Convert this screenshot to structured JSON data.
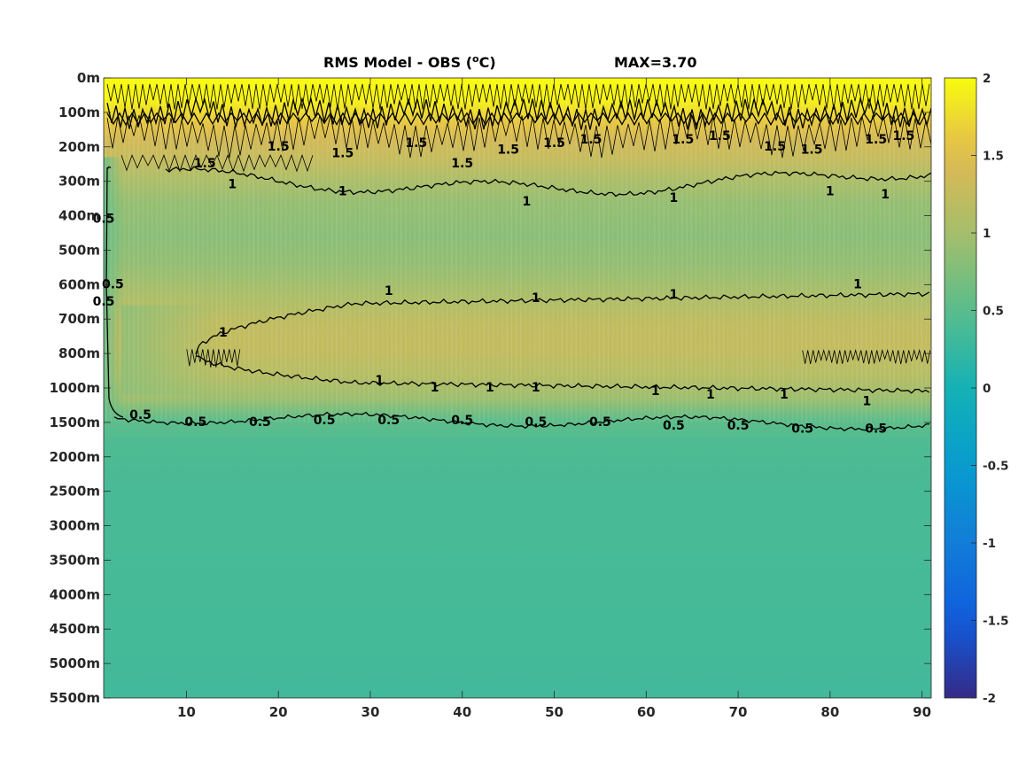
{
  "chart_data": {
    "type": "heatmap",
    "title": "RMS Model - OBS (",
    "title_unit_sup": "o",
    "title_unit_tail": "C)",
    "annotation": "MAX=3.70",
    "x": {
      "ticks": [
        10,
        20,
        30,
        40,
        50,
        60,
        70,
        80,
        90
      ],
      "range": [
        1,
        91
      ]
    },
    "y": {
      "ticks": [
        "0m",
        "100m",
        "200m",
        "300m",
        "400m",
        "500m",
        "600m",
        "700m",
        "800m",
        "1000m",
        "1500m",
        "2000m",
        "2500m",
        "3000m",
        "3500m",
        "4000m",
        "4500m",
        "5000m",
        "5500m"
      ],
      "reversed": true
    },
    "colorbar": {
      "colormap": "parula",
      "range": [
        -2,
        2
      ],
      "ticks": [
        "2",
        "1.5",
        "1",
        "0.5",
        "0",
        "-0.5",
        "-1",
        "-1.5",
        "-2"
      ]
    },
    "contour_levels": [
      0.5,
      1,
      1.5
    ],
    "contour_labels": [
      {
        "text": "1.5",
        "x": 12,
        "y": 2.5
      },
      {
        "text": "1.5",
        "x": 20,
        "y": 2.0
      },
      {
        "text": "1.5",
        "x": 27,
        "y": 2.2
      },
      {
        "text": "1.5",
        "x": 35,
        "y": 1.9
      },
      {
        "text": "1.5",
        "x": 40,
        "y": 2.5
      },
      {
        "text": "1.5",
        "x": 45,
        "y": 2.1
      },
      {
        "text": "1.5",
        "x": 50,
        "y": 1.9
      },
      {
        "text": "1.5",
        "x": 54,
        "y": 1.8
      },
      {
        "text": "1.5",
        "x": 64,
        "y": 1.8
      },
      {
        "text": "1.5",
        "x": 68,
        "y": 1.7
      },
      {
        "text": "1.5",
        "x": 74,
        "y": 2.0
      },
      {
        "text": "1.5",
        "x": 78,
        "y": 2.1
      },
      {
        "text": "1.5",
        "x": 85,
        "y": 1.8
      },
      {
        "text": "1.5",
        "x": 88,
        "y": 1.7
      },
      {
        "text": "1",
        "x": 15,
        "y": 3.1
      },
      {
        "text": "1",
        "x": 27,
        "y": 3.3
      },
      {
        "text": "1",
        "x": 47,
        "y": 3.6
      },
      {
        "text": "1",
        "x": 63,
        "y": 3.5
      },
      {
        "text": "1",
        "x": 80,
        "y": 3.3
      },
      {
        "text": "1",
        "x": 86,
        "y": 3.4
      },
      {
        "text": "1",
        "x": 14,
        "y": 7.4
      },
      {
        "text": "1",
        "x": 32,
        "y": 6.2
      },
      {
        "text": "1",
        "x": 48,
        "y": 6.4
      },
      {
        "text": "1",
        "x": 63,
        "y": 6.3
      },
      {
        "text": "1",
        "x": 83,
        "y": 6.0
      },
      {
        "text": "1",
        "x": 31,
        "y": 8.8
      },
      {
        "text": "1",
        "x": 37,
        "y": 9.0
      },
      {
        "text": "1",
        "x": 43,
        "y": 9.0
      },
      {
        "text": "1",
        "x": 48,
        "y": 9.0
      },
      {
        "text": "1",
        "x": 61,
        "y": 9.1
      },
      {
        "text": "1",
        "x": 67,
        "y": 9.2
      },
      {
        "text": "1",
        "x": 75,
        "y": 9.2
      },
      {
        "text": "1",
        "x": 84,
        "y": 9.4
      },
      {
        "text": "0.5",
        "x": 5,
        "y": 9.8
      },
      {
        "text": "0.5",
        "x": 11,
        "y": 10.0
      },
      {
        "text": "0.5",
        "x": 18,
        "y": 10.0
      },
      {
        "text": "0.5",
        "x": 25,
        "y": 9.95
      },
      {
        "text": "0.5",
        "x": 32,
        "y": 9.95
      },
      {
        "text": "0.5",
        "x": 40,
        "y": 9.95
      },
      {
        "text": "0.5",
        "x": 48,
        "y": 10.0
      },
      {
        "text": "0.5",
        "x": 55,
        "y": 10.0
      },
      {
        "text": "0.5",
        "x": 63,
        "y": 10.1
      },
      {
        "text": "0.5",
        "x": 70,
        "y": 10.1
      },
      {
        "text": "0.5",
        "x": 77,
        "y": 10.2
      },
      {
        "text": "0.5",
        "x": 85,
        "y": 10.2
      },
      {
        "text": "0.5",
        "x": 1,
        "y": 4.1
      },
      {
        "text": "0.5",
        "x": 2,
        "y": 6.0
      },
      {
        "text": "0.5",
        "x": 1,
        "y": 6.5
      }
    ]
  }
}
